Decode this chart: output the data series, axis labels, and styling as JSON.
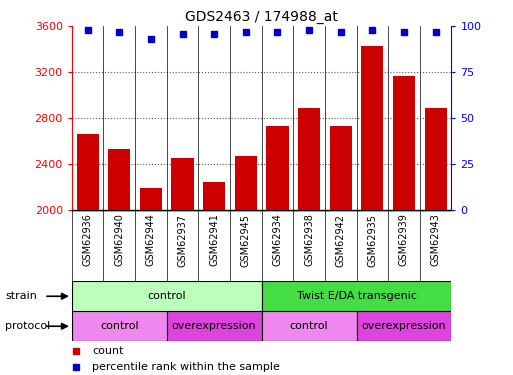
{
  "title": "GDS2463 / 174988_at",
  "samples": [
    "GSM62936",
    "GSM62940",
    "GSM62944",
    "GSM62937",
    "GSM62941",
    "GSM62945",
    "GSM62934",
    "GSM62938",
    "GSM62942",
    "GSM62935",
    "GSM62939",
    "GSM62943"
  ],
  "bar_values": [
    2660,
    2530,
    2190,
    2450,
    2240,
    2470,
    2730,
    2890,
    2730,
    3430,
    3170,
    2890
  ],
  "percentile_values": [
    98,
    97,
    93,
    96,
    96,
    97,
    97,
    98,
    97,
    98,
    97,
    97
  ],
  "bar_color": "#cc0000",
  "dot_color": "#0000cc",
  "ylim_left": [
    2000,
    3600
  ],
  "ylim_right": [
    0,
    100
  ],
  "yticks_left": [
    2000,
    2400,
    2800,
    3200,
    3600
  ],
  "yticks_right": [
    0,
    25,
    50,
    75,
    100
  ],
  "strain_groups": [
    {
      "label": "control",
      "start": 0,
      "end": 6,
      "color": "#bbffbb"
    },
    {
      "label": "Twist E/DA transgenic",
      "start": 6,
      "end": 12,
      "color": "#44dd44"
    }
  ],
  "protocol_groups": [
    {
      "label": "control",
      "start": 0,
      "end": 3,
      "color": "#ee88ee"
    },
    {
      "label": "overexpression",
      "start": 3,
      "end": 6,
      "color": "#dd44dd"
    },
    {
      "label": "control",
      "start": 6,
      "end": 9,
      "color": "#ee88ee"
    },
    {
      "label": "overexpression",
      "start": 9,
      "end": 12,
      "color": "#dd44dd"
    }
  ],
  "legend_count_color": "#cc0000",
  "legend_dot_color": "#0000cc",
  "background_color": "#ffffff",
  "grid_color": "#555555",
  "tick_label_bg": "#dddddd"
}
